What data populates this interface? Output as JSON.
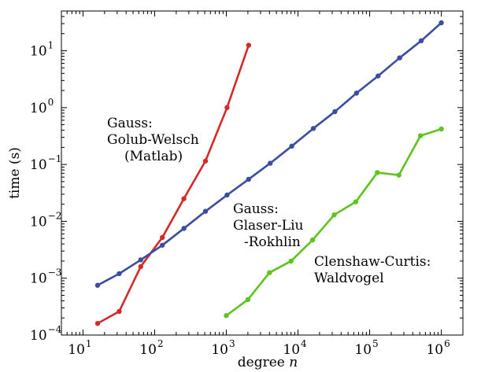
{
  "chart_data": {
    "type": "line",
    "title": "",
    "xlabel": "degree n",
    "ylabel": "time (s)",
    "xscale": "log",
    "yscale": "log",
    "xlim": [
      5,
      2000000
    ],
    "ylim": [
      0.0001,
      50
    ],
    "grid": false,
    "x_ticks": [
      {
        "value": 10,
        "base": "10",
        "exp": "1"
      },
      {
        "value": 100,
        "base": "10",
        "exp": "2"
      },
      {
        "value": 1000,
        "base": "10",
        "exp": "3"
      },
      {
        "value": 10000,
        "base": "10",
        "exp": "4"
      },
      {
        "value": 100000,
        "base": "10",
        "exp": "5"
      },
      {
        "value": 1000000,
        "base": "10",
        "exp": "6"
      }
    ],
    "y_ticks": [
      {
        "value": 0.0001,
        "base": "10",
        "exp": "−4"
      },
      {
        "value": 0.001,
        "base": "10",
        "exp": "−3"
      },
      {
        "value": 0.01,
        "base": "10",
        "exp": "−2"
      },
      {
        "value": 0.1,
        "base": "10",
        "exp": "−1"
      },
      {
        "value": 1,
        "base": "10",
        "exp": "0"
      },
      {
        "value": 10,
        "base": "10",
        "exp": "1"
      }
    ],
    "series": [
      {
        "color": "#d42a26",
        "x": [
          16,
          32,
          64,
          128,
          256,
          512,
          1024,
          2048
        ],
        "y": [
          0.00016,
          0.00026,
          0.0016,
          0.0052,
          0.025,
          0.115,
          1.0,
          12.5
        ]
      },
      {
        "color": "#3a4da0",
        "x": [
          16,
          32,
          64,
          128,
          256,
          512,
          1024,
          2048,
          4096,
          8192,
          16384,
          32768,
          65536,
          131072,
          262144,
          524288,
          1000000
        ],
        "y": [
          0.00075,
          0.0012,
          0.0021,
          0.0038,
          0.0075,
          0.015,
          0.029,
          0.055,
          0.105,
          0.21,
          0.43,
          0.85,
          1.8,
          3.6,
          7.5,
          15,
          31
        ]
      },
      {
        "color": "#5cc41c",
        "x": [
          1000,
          2000,
          4000,
          8000,
          16000,
          32000,
          64000,
          128000,
          256000,
          512000,
          1000000
        ],
        "y": [
          0.00022,
          0.00042,
          0.00125,
          0.002,
          0.0047,
          0.013,
          0.022,
          0.072,
          0.065,
          0.32,
          0.42
        ]
      }
    ],
    "annotations": [
      {
        "lines": [
          "Gauss:",
          "Golub-Welsch",
          "(Matlab)"
        ]
      },
      {
        "lines": [
          "Gauss:",
          "Glaser-Liu",
          "-Rokhlin"
        ]
      },
      {
        "lines": [
          "Clenshaw-Curtis:",
          "Waldvogel"
        ]
      }
    ]
  }
}
